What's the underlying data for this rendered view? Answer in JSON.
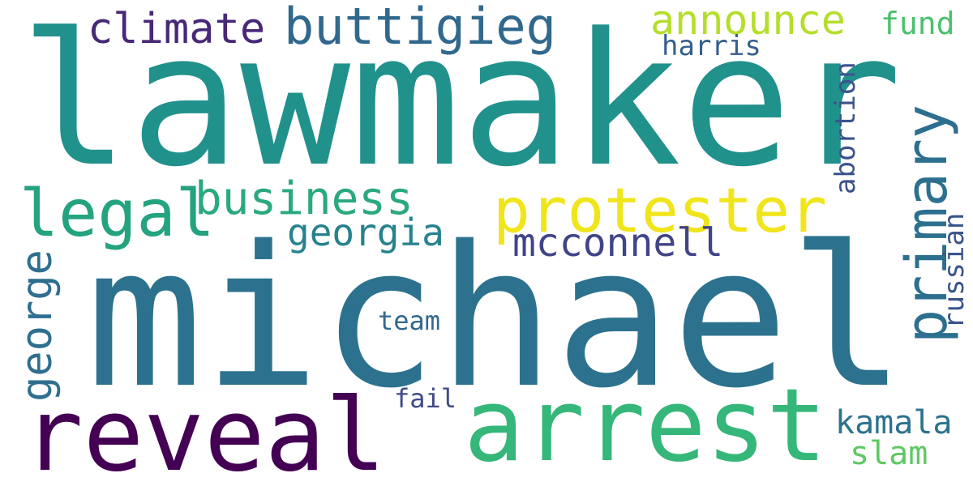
{
  "words": [
    {
      "text": "lawmaker",
      "color": "#21918c"
    },
    {
      "text": "michael",
      "color": "#2c728e"
    },
    {
      "text": "reveal",
      "color": "#440154"
    },
    {
      "text": "arrest",
      "color": "#35b779"
    },
    {
      "text": "protester",
      "color": "#f0e51a"
    },
    {
      "text": "legal",
      "color": "#24a37f"
    },
    {
      "text": "business",
      "color": "#2aa97f"
    },
    {
      "text": "buttigieg",
      "color": "#31688e"
    },
    {
      "text": "climate",
      "color": "#482878"
    },
    {
      "text": "announce",
      "color": "#b5de2b"
    },
    {
      "text": "georgia",
      "color": "#26828e"
    },
    {
      "text": "mcconnell",
      "color": "#414487"
    },
    {
      "text": "primary",
      "color": "#2c6f8e"
    },
    {
      "text": "george",
      "color": "#2e6e8e"
    },
    {
      "text": "fund",
      "color": "#4ac16d"
    },
    {
      "text": "harris",
      "color": "#355e8d"
    },
    {
      "text": "abortion",
      "color": "#3b528b"
    },
    {
      "text": "russian",
      "color": "#3a548c"
    },
    {
      "text": "team",
      "color": "#31688e"
    },
    {
      "text": "fail",
      "color": "#3e4a89"
    },
    {
      "text": "kamala",
      "color": "#2c728e"
    },
    {
      "text": "slam",
      "color": "#5ec962"
    }
  ]
}
